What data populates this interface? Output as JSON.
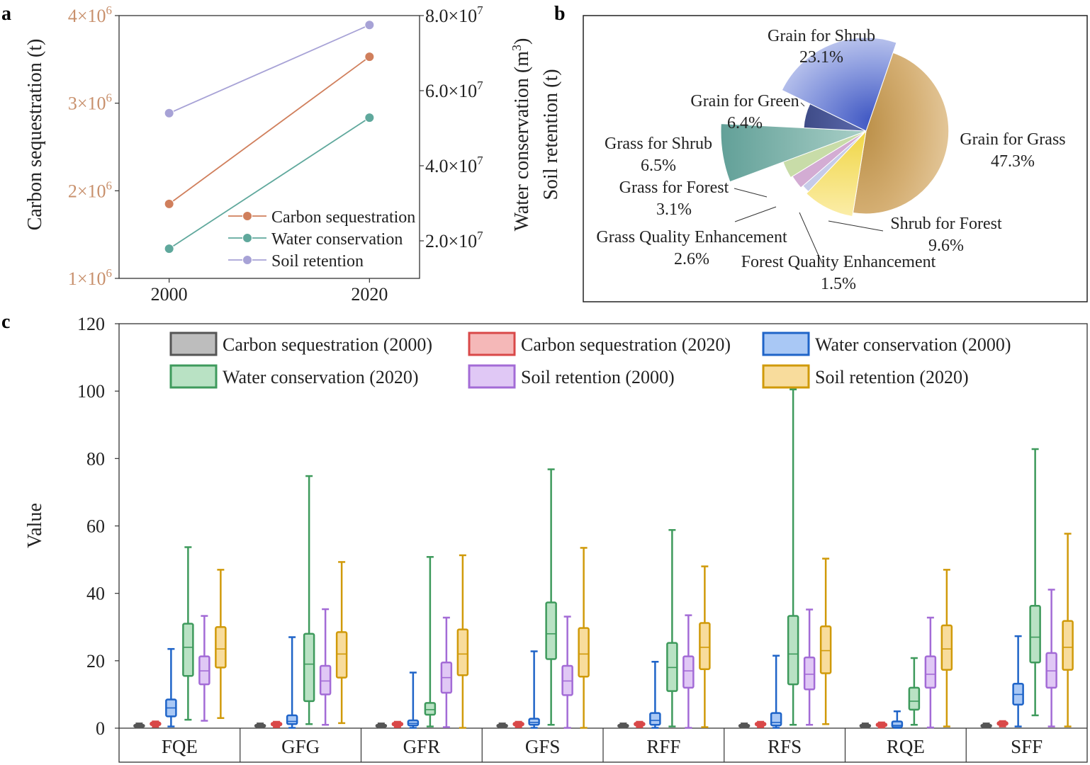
{
  "panel_labels": {
    "a": "a",
    "b": "b",
    "c": "c"
  },
  "chart_data": [
    {
      "id": "a",
      "type": "line",
      "x": [
        2000,
        2020
      ],
      "x_tick_labels": [
        "2000",
        "2020"
      ],
      "xlim": [
        1995,
        2025
      ],
      "left_axis": {
        "label": "Carbon sequestration (t)",
        "ylim": [
          1000000,
          4000000
        ],
        "ticks": [
          1000000,
          2000000,
          3000000,
          4000000
        ],
        "tick_labels": [
          {
            "base": "1×10",
            "exp": "6"
          },
          {
            "base": "2×10",
            "exp": "6"
          },
          {
            "base": "3×10",
            "exp": "6"
          },
          {
            "base": "4×10",
            "exp": "6"
          }
        ],
        "color": "#c8906c"
      },
      "right_axis": {
        "label_line1": "Water conservation (m",
        "label_line1_exp": "3",
        "label_line1_end": ")",
        "label_line2": "Soil retention (t)",
        "ylim": [
          10000000,
          80000000
        ],
        "ticks": [
          20000000,
          40000000,
          60000000,
          80000000
        ],
        "tick_labels": [
          {
            "base": "2.0×10",
            "exp": "7"
          },
          {
            "base": "4.0×10",
            "exp": "7"
          },
          {
            "base": "6.0×10",
            "exp": "7"
          },
          {
            "base": "8.0×10",
            "exp": "7"
          }
        ]
      },
      "series": [
        {
          "name": "Carbon sequestration",
          "axis": "left",
          "values": [
            1850000,
            3530000
          ],
          "color": "#d07f5c"
        },
        {
          "name": "Water conservation",
          "axis": "right",
          "values": [
            17900000,
            52800000
          ],
          "color": "#5fa89c"
        },
        {
          "name": "Soil retention",
          "axis": "right",
          "values": [
            54000000,
            77500000
          ],
          "color": "#a7a2d6"
        }
      ]
    },
    {
      "id": "b",
      "type": "pie",
      "slices": [
        {
          "label": "Grain for Grass",
          "pct": "47.3%",
          "value": 47.3,
          "color": "#c9a063"
        },
        {
          "label": "Shrub for Forest",
          "pct": "9.6%",
          "value": 9.6,
          "color": "#f5df72"
        },
        {
          "label": "Forest Quality Enhancement",
          "pct": "1.5%",
          "value": 1.5,
          "color": "#c4c9ea"
        },
        {
          "label": "Grass Quality Enhancement",
          "pct": "2.6%",
          "value": 2.6,
          "color": "#d6b0d6"
        },
        {
          "label": "Grass for Forest",
          "pct": "3.1%",
          "value": 3.1,
          "color": "#c9dca8"
        },
        {
          "label": "Grass for Shrub",
          "pct": "6.5%",
          "value": 6.5,
          "color": "#7aaaa6"
        },
        {
          "label": "Grain for Green",
          "pct": "6.4%",
          "value": 6.4,
          "color": "#4e5a96"
        },
        {
          "label": "Grain for Shrub",
          "pct": "23.1%",
          "value": 23.1,
          "color": "#93a1de"
        }
      ]
    },
    {
      "id": "c",
      "type": "box",
      "ylabel": "Value",
      "ylim": [
        0,
        120
      ],
      "yticks": [
        0,
        20,
        40,
        60,
        80,
        100,
        120
      ],
      "categories": [
        "FQE",
        "GFG",
        "GFR",
        "GFS",
        "RFF",
        "RFS",
        "RQE",
        "SFF"
      ],
      "series": [
        {
          "name": "Carbon sequestration (2000)",
          "color": "#555555",
          "fill": "#bdbdbd",
          "stats": [
            [
              0.2,
              0.6,
              0.8,
              1.0,
              1.4
            ],
            [
              0.2,
              0.6,
              0.8,
              1.0,
              1.4
            ],
            [
              0.2,
              0.6,
              0.8,
              1.0,
              1.4
            ],
            [
              0.2,
              0.6,
              0.8,
              1.0,
              1.4
            ],
            [
              0.2,
              0.6,
              0.8,
              1.0,
              1.4
            ],
            [
              0.2,
              0.6,
              0.8,
              1.0,
              1.4
            ],
            [
              0.2,
              0.6,
              0.8,
              1.0,
              1.4
            ],
            [
              0.2,
              0.6,
              0.8,
              1.0,
              1.4
            ]
          ]
        },
        {
          "name": "Carbon sequestration (2020)",
          "color": "#d94848",
          "fill": "#f5b8b8",
          "stats": [
            [
              0.4,
              0.9,
              1.3,
              1.7,
              2.0
            ],
            [
              0.3,
              0.8,
              1.2,
              1.6,
              1.9
            ],
            [
              0.3,
              0.8,
              1.2,
              1.6,
              1.9
            ],
            [
              0.3,
              0.8,
              1.2,
              1.6,
              1.9
            ],
            [
              0.3,
              0.8,
              1.2,
              1.6,
              1.9
            ],
            [
              0.3,
              0.8,
              1.2,
              1.6,
              1.9
            ],
            [
              0.2,
              0.6,
              1.0,
              1.4,
              1.7
            ],
            [
              0.5,
              1.0,
              1.4,
              1.8,
              2.1
            ]
          ]
        },
        {
          "name": "Water conservation (2000)",
          "color": "#1f64c8",
          "fill": "#a9c8f5",
          "stats": [
            [
              0.5,
              3.5,
              6.0,
              8.5,
              23.5
            ],
            [
              0.1,
              1.2,
              2.0,
              3.8,
              27.0
            ],
            [
              0.1,
              0.8,
              1.4,
              2.3,
              16.5
            ],
            [
              0.1,
              1.0,
              1.7,
              2.8,
              22.8
            ],
            [
              0.1,
              1.0,
              2.3,
              4.5,
              19.7
            ],
            [
              0.1,
              0.8,
              1.7,
              4.5,
              21.5
            ],
            [
              0.1,
              0.3,
              0.8,
              2.0,
              5.0
            ],
            [
              0.5,
              7.0,
              10.0,
              13.2,
              27.3
            ]
          ]
        },
        {
          "name": "Water conservation (2020)",
          "color": "#3e9a5c",
          "fill": "#b9e2c4",
          "stats": [
            [
              2.5,
              15.5,
              24.0,
              31.0,
              53.7
            ],
            [
              1.2,
              8.0,
              19.0,
              28.0,
              74.8
            ],
            [
              0.5,
              4.0,
              5.5,
              7.5,
              50.8
            ],
            [
              1.0,
              20.5,
              28.0,
              37.3,
              76.8
            ],
            [
              0.5,
              11.0,
              18.0,
              25.3,
              58.8
            ],
            [
              1.0,
              13.0,
              22.0,
              33.3,
              100.5
            ],
            [
              1.0,
              5.5,
              8.0,
              12.0,
              20.8
            ],
            [
              3.8,
              19.5,
              27.0,
              36.3,
              82.8
            ]
          ]
        },
        {
          "name": "Soil retention (2000)",
          "color": "#a36bd6",
          "fill": "#e0c8f5",
          "stats": [
            [
              2.2,
              13.0,
              17.0,
              21.3,
              33.3
            ],
            [
              1.0,
              10.0,
              14.0,
              18.5,
              35.3
            ],
            [
              0.3,
              10.5,
              15.0,
              19.5,
              32.8
            ],
            [
              0.1,
              9.8,
              14.0,
              18.5,
              33.1
            ],
            [
              0.1,
              12.0,
              17.0,
              21.3,
              33.5
            ],
            [
              1.0,
              11.5,
              16.0,
              21.0,
              35.2
            ],
            [
              0.2,
              12.0,
              16.0,
              21.3,
              32.8
            ],
            [
              0.5,
              12.0,
              17.0,
              22.3,
              41.1
            ]
          ]
        },
        {
          "name": "Soil retention (2020)",
          "color": "#d09a0a",
          "fill": "#f8dc9c",
          "stats": [
            [
              3.0,
              18.0,
              23.5,
              30.0,
              47.0
            ],
            [
              1.5,
              15.0,
              22.0,
              28.5,
              49.3
            ],
            [
              0.1,
              15.7,
              22.0,
              29.3,
              51.3
            ],
            [
              0.1,
              15.3,
              22.0,
              29.7,
              53.5
            ],
            [
              0.3,
              17.5,
              24.0,
              31.2,
              48.0
            ],
            [
              1.2,
              16.3,
              23.0,
              30.2,
              50.3
            ],
            [
              0.5,
              17.3,
              23.5,
              30.5,
              47.0
            ],
            [
              0.5,
              17.3,
              24.0,
              31.8,
              57.7
            ]
          ]
        }
      ]
    }
  ]
}
